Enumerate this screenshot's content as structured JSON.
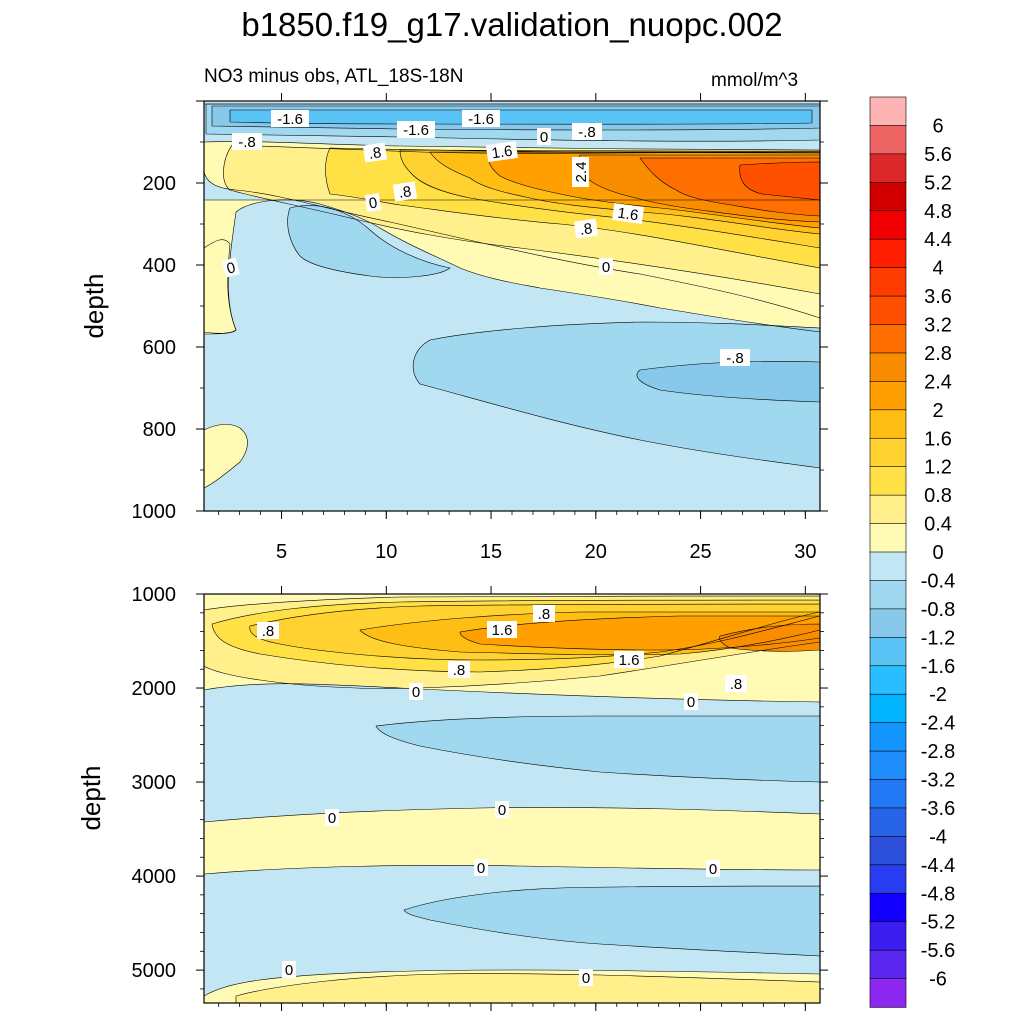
{
  "header": {
    "title": "b1850.f19_g17.validation_nuopc.002",
    "subtitle_left": "NO3 minus obs, ATL_18S-18N",
    "subtitle_right": "mmol/m^3"
  },
  "chart_data": [
    {
      "type": "heatmap",
      "panel": "upper",
      "ylabel": "depth",
      "y_reversed": true,
      "xlim": [
        1.3,
        30.7
      ],
      "ylim": [
        0,
        1000
      ],
      "x_ticks": [
        "5",
        "10",
        "15",
        "20",
        "25",
        "30"
      ],
      "y_ticks": [
        "200",
        "400",
        "600",
        "800",
        "1000"
      ],
      "contour_labels": [
        "-1.6",
        "-1.6",
        "-1.6",
        "-.8",
        ".8",
        "1.6",
        "0",
        "-.8",
        "2.4",
        ".8",
        "0",
        "1.6",
        ".8",
        "0",
        "0",
        "-.8"
      ]
    },
    {
      "type": "heatmap",
      "panel": "lower",
      "ylabel": "depth",
      "y_reversed": true,
      "xlim": [
        1.3,
        30.7
      ],
      "ylim": [
        1000,
        5350
      ],
      "y_ticks": [
        "1000",
        "2000",
        "3000",
        "4000",
        "5000"
      ],
      "contour_labels": [
        ".8",
        ".8",
        "1.6",
        "1.6",
        ".8",
        ".8",
        "0",
        "0",
        "0",
        "0",
        "0",
        "0",
        "0",
        "0"
      ]
    }
  ],
  "colorbar": {
    "labels": [
      "6",
      "5.6",
      "5.2",
      "4.8",
      "4.4",
      "4",
      "3.6",
      "3.2",
      "2.8",
      "2.4",
      "2",
      "1.6",
      "1.2",
      "0.8",
      "0.4",
      "0",
      "-0.4",
      "-0.8",
      "-1.2",
      "-1.6",
      "-2",
      "-2.4",
      "-2.8",
      "-3.2",
      "-3.6",
      "-4",
      "-4.4",
      "-4.8",
      "-5.2",
      "-5.6",
      "-6"
    ],
    "colors": [
      "#fcb4b4",
      "#ec6464",
      "#dc2828",
      "#d20000",
      "#f00000",
      "#ff1e00",
      "#ff3c00",
      "#ff5000",
      "#ff6e00",
      "#fa8c00",
      "#ffa000",
      "#ffbe14",
      "#ffd232",
      "#ffe146",
      "#fff08c",
      "#fffab4",
      "#c3e6f5",
      "#a0d8f0",
      "#87c8eb",
      "#5ac3f5",
      "#28beff",
      "#00b4ff",
      "#1496ff",
      "#1e8cfa",
      "#2378f5",
      "#2864e6",
      "#2d50dc",
      "#283cf0",
      "#1400ff",
      "#3c1ef0",
      "#5a28f0",
      "#8c28f0"
    ]
  }
}
